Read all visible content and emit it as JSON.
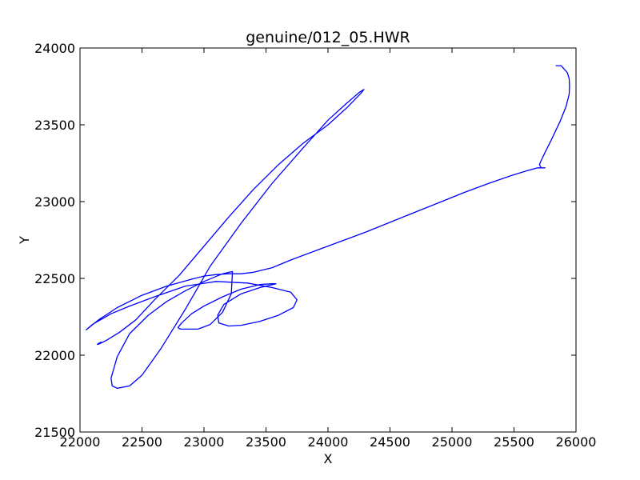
{
  "chart_data": {
    "type": "line",
    "title": "genuine/012_05.HWR",
    "xlabel": "X",
    "ylabel": "Y",
    "xlim": [
      22000,
      26000
    ],
    "ylim": [
      21500,
      24000
    ],
    "xticks": [
      22000,
      22500,
      23000,
      23500,
      24000,
      24500,
      25000,
      25500,
      26000
    ],
    "yticks": [
      21500,
      22000,
      22500,
      23000,
      23500,
      24000
    ],
    "xtick_labels": [
      "22000",
      "22500",
      "23000",
      "23500",
      "24000",
      "24500",
      "25000",
      "25500",
      "26000"
    ],
    "ytick_labels": [
      "21500",
      "22000",
      "22500",
      "23000",
      "23500",
      "24000"
    ],
    "grid": false,
    "series": [
      {
        "color": "#0000ff",
        "x": [
          25840,
          25880,
          25930,
          25945,
          25948,
          25945,
          25920,
          25870,
          25800,
          25750,
          25715,
          25705,
          25720,
          25750,
          25690,
          25600,
          25480,
          25300,
          25100,
          24900,
          24700,
          24500,
          24300,
          24100,
          23900,
          23700,
          23550,
          23400,
          23300,
          23200,
          23100,
          23000,
          22900,
          22700,
          22500,
          22300,
          22150,
          22050,
          22100,
          22250,
          22400,
          22600,
          22850,
          23100,
          23350,
          23550,
          23700,
          23750,
          23720,
          23600,
          23450,
          23300,
          23200,
          23120,
          23110,
          23160,
          23300,
          23450,
          23580,
          23550,
          23450,
          23300,
          23150,
          23000,
          22900,
          22820,
          22790,
          22810,
          22870,
          22950,
          23050,
          23150,
          23220,
          23230,
          23150,
          23000,
          22850,
          22700,
          22550,
          22400,
          22300,
          22250,
          22260,
          22300,
          22400,
          22500,
          22650,
          22850,
          23050,
          23300,
          23550,
          23800,
          24000,
          24150,
          24250,
          24290,
          24260,
          24150,
          24000,
          23800,
          23600,
          23400,
          23200,
          23000,
          22800,
          22600,
          22450,
          22320,
          22220,
          22160,
          22140,
          22145,
          22170
        ],
        "y": [
          23885,
          23885,
          23840,
          23800,
          23750,
          23700,
          23620,
          23520,
          23400,
          23320,
          23260,
          23240,
          23220,
          23220,
          23220,
          23200,
          23170,
          23120,
          23060,
          22995,
          22930,
          22865,
          22800,
          22740,
          22680,
          22620,
          22570,
          22540,
          22530,
          22530,
          22525,
          22515,
          22495,
          22450,
          22390,
          22310,
          22230,
          22165,
          22200,
          22270,
          22320,
          22380,
          22450,
          22480,
          22470,
          22440,
          22410,
          22360,
          22310,
          22260,
          22220,
          22195,
          22190,
          22210,
          22260,
          22330,
          22400,
          22440,
          22465,
          22465,
          22460,
          22430,
          22380,
          22320,
          22270,
          22210,
          22180,
          22170,
          22170,
          22170,
          22200,
          22280,
          22400,
          22545,
          22530,
          22480,
          22420,
          22350,
          22260,
          22140,
          21990,
          21850,
          21800,
          21785,
          21800,
          21870,
          22040,
          22300,
          22580,
          22860,
          23120,
          23350,
          23530,
          23640,
          23710,
          23730,
          23700,
          23610,
          23500,
          23380,
          23240,
          23080,
          22900,
          22710,
          22520,
          22360,
          22230,
          22150,
          22100,
          22075,
          22070,
          22075,
          22085
        ]
      }
    ]
  }
}
